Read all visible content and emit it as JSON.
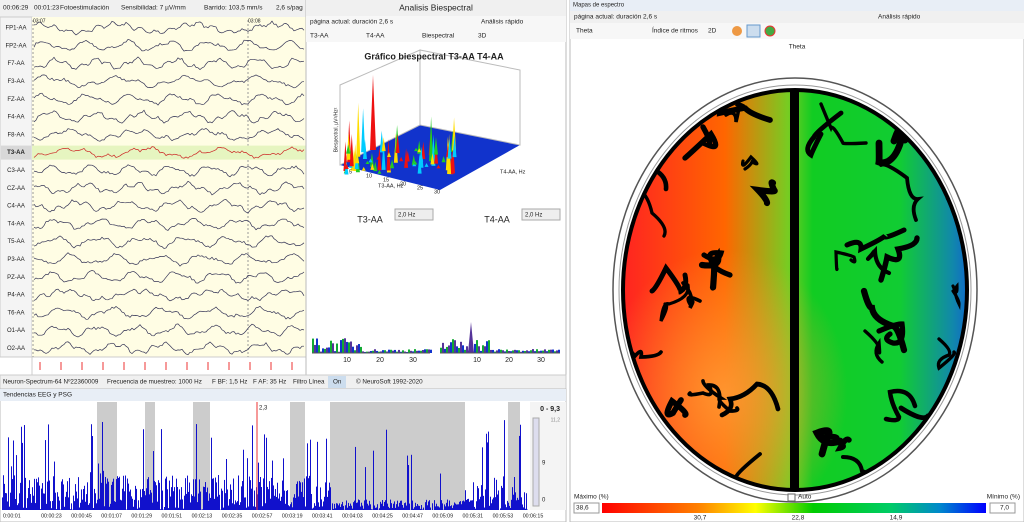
{
  "toolbar": {
    "time": "00:06:29",
    "elapsed": "00:01:23",
    "mode": "Fotoestimulación",
    "sensitivity": "Sensibilidad: 7 µV/mm",
    "sweep": "Barrido: 103,5 mm/s",
    "page": "2,6 s/pag"
  },
  "eeg": {
    "channels": [
      "FP1-AA",
      "FP2-AA",
      "F7-AA",
      "F3-AA",
      "FZ-AA",
      "F4-AA",
      "F8-AA",
      "T3-AA",
      "C3-AA",
      "CZ-AA",
      "C4-AA",
      "T4-AA",
      "T5-AA",
      "P3-AA",
      "PZ-AA",
      "P4-AA",
      "T6-AA",
      "O1-AA",
      "O2-AA"
    ],
    "markers": [
      "03:07",
      "03:08"
    ]
  },
  "status": {
    "device": "Neuron-Spectrum-64 Nº22360009",
    "rate": "Frecuencia de muestreo:  1000 Hz",
    "lowcut": "F BF:  1,5 Hz",
    "highcut": "F AF:  35 Hz",
    "line_filter": "Filtro Línea",
    "line_state": "On",
    "copyright": "© NeuroSoft 1992-2020"
  },
  "bispectral": {
    "title": "Analisis Biespectral",
    "page": "página actual: duración 2,6 s",
    "mode": "Análisis rápido",
    "ch1": "T3-AA",
    "ch2": "T4-AA",
    "kind": "Biespectral",
    "view": "3D",
    "chart_title": "Gráfico biespectral T3-AA T4-AA",
    "z_label": "Biespectral, µV²/Hz²",
    "x_label": "T3-AA, Hz",
    "y_label": "T4-AA, Hz",
    "xticks": [
      "5",
      "10",
      "15",
      "20",
      "25",
      "30"
    ],
    "left_label": "T3-AA",
    "left_res": "2,0 Hz",
    "right_label": "T4-AA",
    "right_res": "2,0 Hz",
    "spectrum_ticks": [
      "10",
      "20",
      "30"
    ]
  },
  "trends": {
    "title": "Tendencias EEG y PSG",
    "cursor": "2,3",
    "range": "0 - 9,3",
    "scale_top": "11,2",
    "scale_value": "9",
    "scale_bottom": "0",
    "times": [
      "0:00:01",
      "00:00:23",
      "00:00:45",
      "00:01:07",
      "00:01:29",
      "00:01:51",
      "00:02:13",
      "00:02:35",
      "00:02:57",
      "00:03:19",
      "00:03:41",
      "00:04:03",
      "00:04:25",
      "00:04:47",
      "00:05:09",
      "00:05:31",
      "00:05:53",
      "00:06:15"
    ]
  },
  "spectrum_map": {
    "title": "Mapas de espectro",
    "page": "página actual: duración 2,6 s",
    "mode": "Análisis rápido",
    "band": "Theta",
    "index": "Índice de ritmos",
    "view": "2D",
    "map_title": "Theta",
    "max_label": "Máximo (%)",
    "auto": "Auto",
    "min_label": "Mínimo (%)",
    "max_value": "38,6",
    "min_value": "7,0",
    "scale": [
      "30,7",
      "22,8",
      "14,9"
    ]
  }
}
